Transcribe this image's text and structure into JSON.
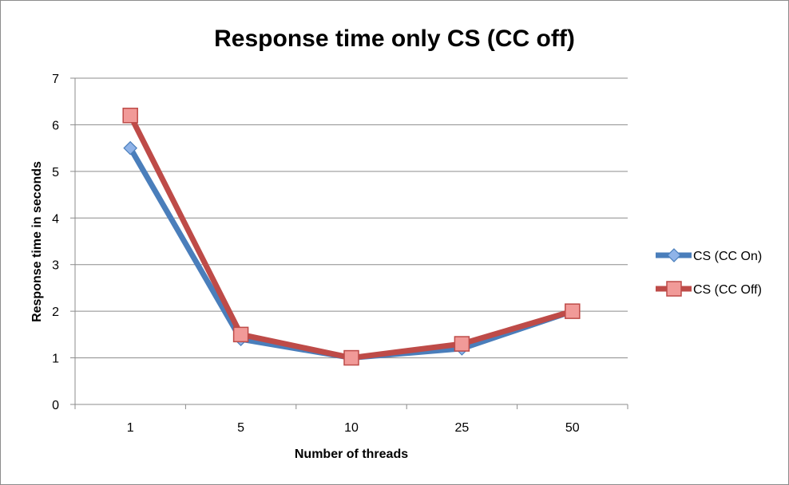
{
  "chart_data": {
    "type": "line",
    "title": "Response time only CS (CC off)",
    "xlabel": "Number of threads",
    "ylabel": "Response time in seconds",
    "categories": [
      "1",
      "5",
      "10",
      "25",
      "50"
    ],
    "ylim": [
      0,
      7
    ],
    "yticks": [
      "0",
      "1",
      "2",
      "3",
      "4",
      "5",
      "6",
      "7"
    ],
    "grid": true,
    "legend_position": "right",
    "series": [
      {
        "name": "CS (CC On)",
        "values": [
          5.5,
          1.4,
          1.0,
          1.2,
          2.0
        ],
        "color": "#4a7ebb",
        "marker": "diamond"
      },
      {
        "name": "CS (CC Off)",
        "values": [
          6.2,
          1.5,
          1.0,
          1.3,
          2.0
        ],
        "color": "#be4b48",
        "marker": "square"
      }
    ]
  }
}
